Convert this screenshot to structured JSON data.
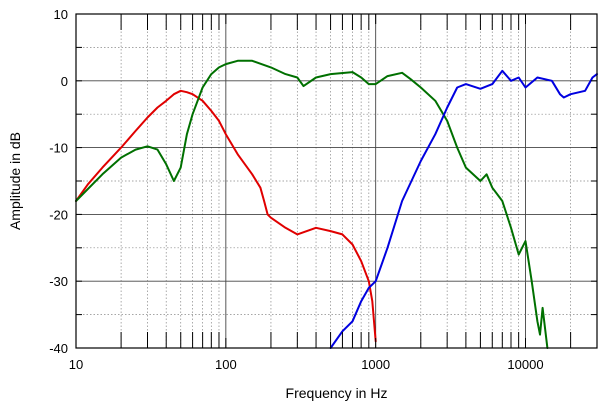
{
  "chart_data": {
    "type": "line",
    "xlabel": "Frequency in Hz",
    "ylabel": "Amplitude in dB",
    "xscale": "log",
    "xlim": [
      10,
      30000
    ],
    "ylim": [
      -40,
      10
    ],
    "x_ticks": [
      10,
      100,
      1000,
      10000
    ],
    "x_tick_labels": [
      "10",
      "100",
      "1000",
      "10000"
    ],
    "y_ticks": [
      10,
      0,
      -10,
      -20,
      -30,
      -40
    ],
    "y_tick_labels": [
      "10",
      "0",
      "-10",
      "-20",
      "-30",
      "-40"
    ],
    "grid": true,
    "legend": "none",
    "series": [
      {
        "color": "#e00000",
        "x": [
          10,
          12,
          15,
          20,
          25,
          30,
          35,
          40,
          45,
          50,
          55,
          60,
          70,
          80,
          90,
          100,
          120,
          150,
          170,
          180,
          190,
          200,
          250,
          300,
          400,
          500,
          600,
          700,
          800,
          900,
          950,
          1000
        ],
        "y": [
          -18,
          -15.5,
          -13,
          -10,
          -7.5,
          -5.5,
          -4,
          -3,
          -2,
          -1.5,
          -1.7,
          -2,
          -3,
          -4.5,
          -6,
          -8,
          -11,
          -14,
          -16,
          -18,
          -20,
          -20.5,
          -22,
          -23,
          -22,
          -22.5,
          -23,
          -24.5,
          -27,
          -30,
          -33,
          -39
        ]
      },
      {
        "color": "#007000",
        "x": [
          10,
          15,
          20,
          25,
          30,
          35,
          40,
          45,
          50,
          55,
          60,
          70,
          80,
          90,
          100,
          120,
          150,
          200,
          250,
          300,
          330,
          400,
          500,
          700,
          800,
          900,
          1000,
          1200,
          1500,
          1700,
          2000,
          2500,
          3000,
          3500,
          4000,
          5000,
          5500,
          6000,
          7000,
          8000,
          9000,
          10000,
          11000,
          12000,
          12500,
          13000,
          14000
        ],
        "y": [
          -18,
          -14,
          -11.5,
          -10.3,
          -9.8,
          -10.3,
          -12.5,
          -15,
          -13,
          -8,
          -5,
          -1,
          1,
          2,
          2.5,
          3,
          3,
          2,
          1,
          0.5,
          -0.8,
          0.5,
          1,
          1.3,
          0.5,
          -0.5,
          -0.5,
          0.7,
          1.2,
          0.3,
          -1,
          -3,
          -6,
          -10,
          -13,
          -15,
          -14,
          -16,
          -18,
          -22,
          -26,
          -24,
          -30,
          -36,
          -38,
          -34,
          -40
        ]
      },
      {
        "color": "#0000e0",
        "x": [
          500,
          600,
          700,
          800,
          900,
          1000,
          1200,
          1500,
          2000,
          2500,
          3000,
          3500,
          4000,
          5000,
          6000,
          7000,
          8000,
          9000,
          10000,
          12000,
          15000,
          17000,
          18000,
          20000,
          25000,
          28000,
          30000
        ],
        "y": [
          -40,
          -37.5,
          -36,
          -33,
          -31,
          -30,
          -25,
          -18,
          -12,
          -8,
          -4,
          -1,
          -0.5,
          -1.2,
          -0.5,
          1.5,
          0,
          0.5,
          -1,
          0.5,
          0,
          -2,
          -2.5,
          -2,
          -1.5,
          0.5,
          1
        ]
      }
    ]
  }
}
